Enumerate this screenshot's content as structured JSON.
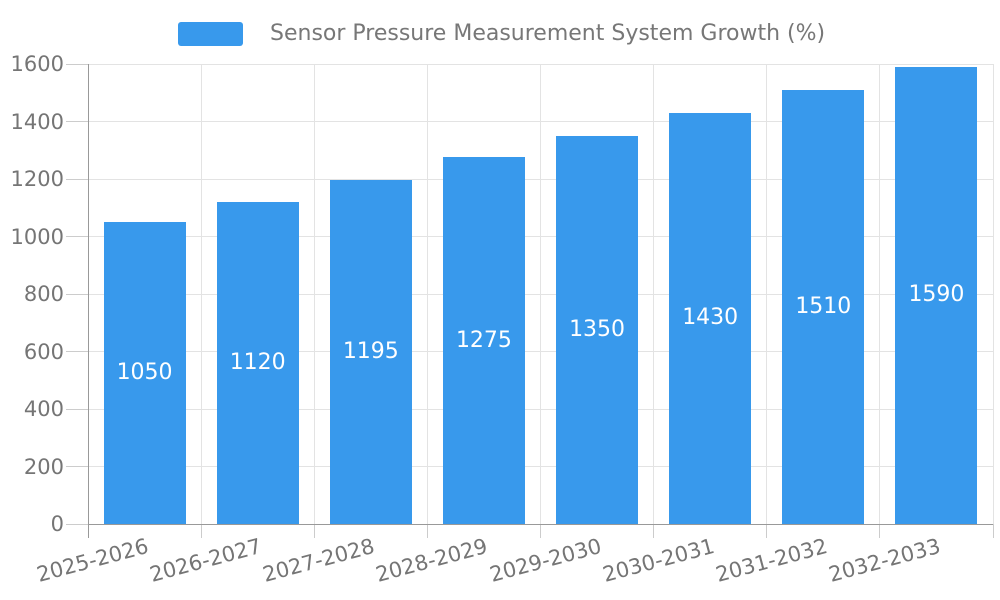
{
  "chart_data": {
    "type": "bar",
    "title": "Sensor Pressure Measurement System Growth (%)",
    "categories": [
      "2025-2026",
      "2026-2027",
      "2027-2028",
      "2028-2029",
      "2029-2030",
      "2030-2031",
      "2031-2032",
      "2032-2033"
    ],
    "values": [
      1050,
      1120,
      1195,
      1275,
      1350,
      1430,
      1510,
      1590
    ],
    "xlabel": "",
    "ylabel": "",
    "ylim": [
      0,
      1600
    ],
    "yticks": [
      0,
      200,
      400,
      600,
      800,
      1000,
      1200,
      1400,
      1600
    ],
    "grid": true,
    "legend_position": "top",
    "bar_color": "#3899EC",
    "value_label_color": "#FFFFFF",
    "grid_color": "#E3E3E3",
    "axis_color": "#999999",
    "tick_mark_color": "#CCCCCC",
    "tick_text_color": "#757575",
    "legend_text_color": "#777777"
  }
}
